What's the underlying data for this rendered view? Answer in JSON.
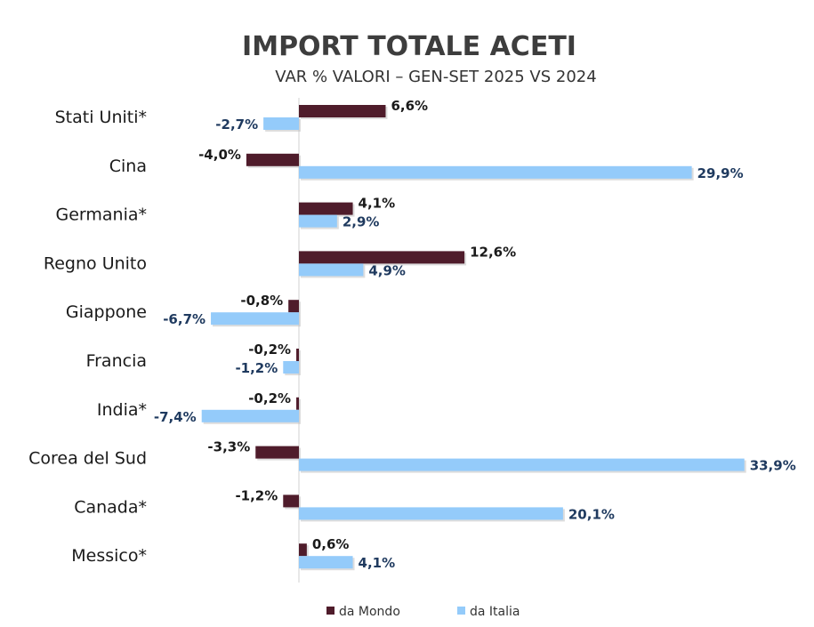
{
  "chart_data": {
    "type": "bar",
    "orientation": "horizontal",
    "title": "IMPORT TOTALE ACETI",
    "subtitle": "VAR % VALORI – GEN-SET 2025 VS 2024",
    "categories": [
      "Stati Uniti*",
      "Cina",
      "Germania*",
      "Regno Unito",
      "Giappone",
      "Francia",
      "India*",
      "Corea del Sud",
      "Canada*",
      "Messico*"
    ],
    "series": [
      {
        "name": "da Mondo",
        "color": "#4f1c2b",
        "values": [
          6.6,
          -4.0,
          4.1,
          12.6,
          -0.8,
          -0.2,
          -0.2,
          -3.3,
          -1.2,
          0.6
        ],
        "labels": [
          "6,6%",
          "-4,0%",
          "4,1%",
          "12,6%",
          "-0,8%",
          "-0,2%",
          "-0,2%",
          "-3,3%",
          "-1,2%",
          "0,6%"
        ]
      },
      {
        "name": "da Italia",
        "color": "#94cbfa",
        "values": [
          -2.7,
          29.9,
          2.9,
          4.9,
          -6.7,
          -1.2,
          -7.4,
          33.9,
          20.1,
          4.1
        ],
        "labels": [
          "-2,7%",
          "29,9%",
          "2,9%",
          "4,9%",
          "-6,7%",
          "-1,2%",
          "-7,4%",
          "33,9%",
          "20,1%",
          "4,1%"
        ]
      }
    ],
    "grid": false,
    "legend": "bottom"
  }
}
